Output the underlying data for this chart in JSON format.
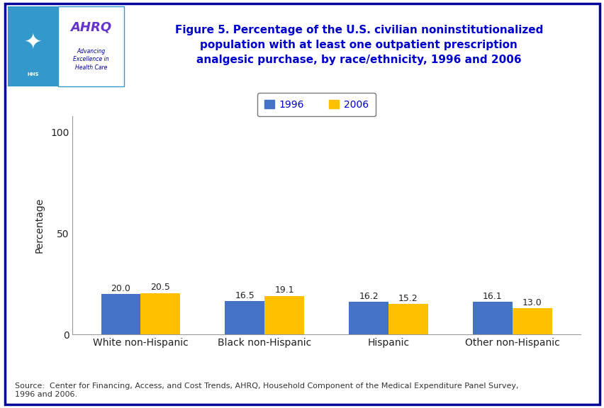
{
  "categories": [
    "White non-Hispanic",
    "Black non-Hispanic",
    "Hispanic",
    "Other non-Hispanic"
  ],
  "values_1996": [
    20.0,
    16.5,
    16.2,
    16.1
  ],
  "values_2006": [
    20.5,
    19.1,
    15.2,
    13.0
  ],
  "color_1996": "#4472C4",
  "color_2006": "#FFC000",
  "ylabel": "Percentage",
  "yticks": [
    0,
    50,
    100
  ],
  "ylim": [
    0,
    108
  ],
  "bar_width": 0.32,
  "title_line1": "Figure 5. Percentage of the U.S. civilian noninstitutionalized",
  "title_line2": "population with at least one outpatient prescription",
  "title_line3": "analgesic purchase, by race/ethnicity, 1996 and 2006",
  "title_color": "#0000CC",
  "source_text": "Source:  Center for Financing, Access, and Cost Trends, AHRQ, Household Component of the Medical Expenditure Panel Survey,\n1996 and 2006.",
  "legend_labels": [
    "1996",
    "2006"
  ],
  "bg_color": "#FFFFFF",
  "border_color": "#000099",
  "divider_color": "#000099",
  "logo_bg_color": "#3399CC",
  "ahrq_text_color": "#6633CC",
  "ahrq_sub_color": "#000099"
}
